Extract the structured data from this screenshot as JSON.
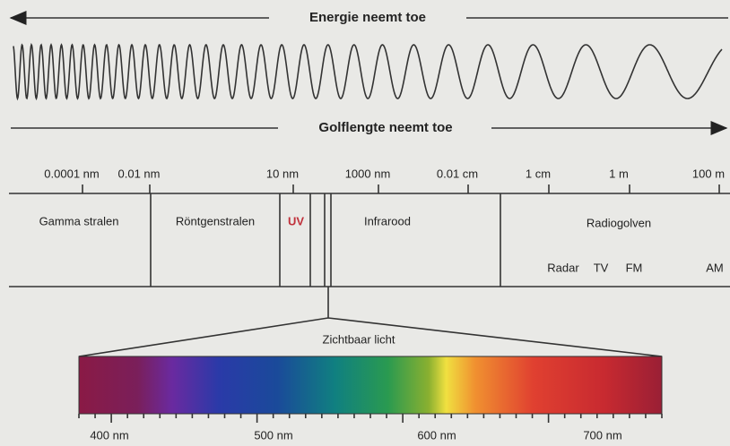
{
  "energy_arrow": {
    "label": "Energie neemt toe"
  },
  "wavelength_arrow": {
    "label": "Golflengte neemt toe"
  },
  "scale_labels": [
    "0.0001 nm",
    "0.01 nm",
    "10 nm",
    "1000 nm",
    "0.01 cm",
    "1 cm",
    "1 m",
    "100 m"
  ],
  "regions": [
    "Gamma stralen",
    "Röntgenstralen",
    "UV",
    "Infrarood",
    "Radiogolven"
  ],
  "radio_bands": [
    "Radar",
    "TV",
    "FM",
    "AM"
  ],
  "visible": {
    "label": "Zichtbaar licht",
    "scale_labels": [
      "400 nm",
      "500 nm",
      "600 nm",
      "700 nm"
    ]
  }
}
